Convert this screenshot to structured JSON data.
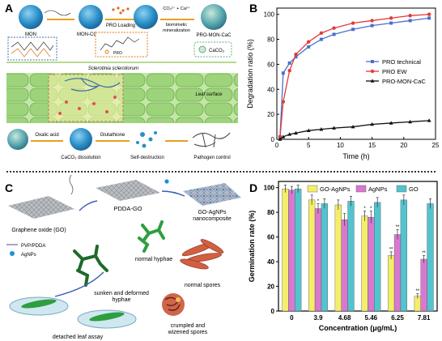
{
  "panels": {
    "a": {
      "label": "A",
      "texts": {
        "mon": "MON",
        "mon_cooh": "MON-COOH",
        "pro_loading": "PRO Loading",
        "co3_ca": "CO₃²⁻ + Ca²⁺",
        "biomimetic": "biomimetic",
        "mineralization": "mineralization",
        "pro_mon_cac": "PRO-MON-CaC",
        "pro": "PRO",
        "caco3": "CaCO₃",
        "sclerotinia": "Sclerotinia sclerotiorum",
        "leaf_surface": "Leaf surface",
        "oxalic_acid": "Oxalic acid",
        "glutathione": "Glutathione",
        "caco3_dissolution": "CaCO₃ dissolution",
        "self_destruction": "Self-destruction",
        "pathogen_control": "Pathogen control"
      }
    },
    "b": {
      "label": "B",
      "chart_data": {
        "type": "line",
        "xlabel": "Time (h)",
        "ylabel": "Degradation ratio (%)",
        "xlim": [
          0,
          25
        ],
        "ylim": [
          0,
          105
        ],
        "xticks": [
          "0",
          "5",
          "10",
          "15",
          "20",
          "25"
        ],
        "yticks": [
          "0",
          "20",
          "40",
          "60",
          "80",
          "100"
        ],
        "legend_position": "middle-right",
        "series": [
          {
            "name": "PRO technical",
            "color": "#4a6fd0",
            "marker": "square",
            "x": [
              0.5,
              1,
              2,
              3,
              5,
              7,
              9,
              12,
              15,
              18,
              21,
              24
            ],
            "y": [
              2,
              53,
              61,
              66,
              74,
              80,
              84,
              88,
              91,
              93,
              95,
              97
            ]
          },
          {
            "name": "PRO EW",
            "color": "#e23a3a",
            "marker": "circle",
            "x": [
              0.5,
              1,
              2,
              3,
              5,
              7,
              9,
              12,
              15,
              18,
              21,
              24
            ],
            "y": [
              2,
              30,
              55,
              68,
              78,
              85,
              89,
              93,
              95,
              97,
              99,
              100
            ]
          },
          {
            "name": "PRO-MON-CaC",
            "color": "#111111",
            "marker": "triangle",
            "x": [
              0.5,
              1,
              2,
              3,
              5,
              7,
              9,
              12,
              15,
              18,
              21,
              24
            ],
            "y": [
              0,
              2,
              4,
              5,
              7,
              8,
              9,
              10,
              12,
              13,
              14,
              15
            ]
          }
        ]
      }
    },
    "c": {
      "label": "C",
      "texts": {
        "graphene_oxide": "Graphene oxide (GO)",
        "pdda_go": "PDDA-GO",
        "go_agnps": "GO-AgNPs",
        "nanocomposite": "nanocomposite",
        "pvp_pdda": "PVP/PDDA",
        "agnps": "AgNPs",
        "normal_hyphae": "normal hyphae",
        "normal_spores": "normal spores",
        "sunken_1": "sunken and deformed",
        "sunken_2": "hyphae",
        "crumpled_1": "crumpled and",
        "crumpled_2": "wizened spores",
        "detached_leaf": "detached leaf assay"
      }
    },
    "d": {
      "label": "D",
      "chart_data": {
        "type": "bar",
        "xlabel": "Concentration (μg/mL)",
        "ylabel": "Germination rate (%)",
        "ylim": [
          0,
          105
        ],
        "yticks": [
          "0",
          "20",
          "40",
          "60",
          "80",
          "100"
        ],
        "categories": [
          "0",
          "3.9",
          "4.68",
          "5.46",
          "6.25",
          "7.81"
        ],
        "legend_position": "top",
        "series": [
          {
            "name": "GO-AgNPs",
            "color": "#f4ee6a",
            "values": [
              99,
              90,
              86,
              77,
              45,
              12
            ],
            "errors": [
              3,
              4,
              4,
              4,
              3,
              2
            ],
            "labels": [
              "",
              "",
              "",
              "*",
              "**",
              "**"
            ]
          },
          {
            "name": "AgNPs",
            "color": "#d879cf",
            "values": [
              98,
              83,
              74,
              76,
              62,
              42
            ],
            "errors": [
              3,
              4,
              5,
              5,
              4,
              3
            ],
            "labels": [
              "",
              "*",
              "",
              "*",
              "**",
              "**"
            ]
          },
          {
            "name": "GO",
            "color": "#52c4cf",
            "values": [
              99,
              87,
              89,
              88,
              90,
              87
            ],
            "errors": [
              3,
              4,
              4,
              4,
              4,
              4
            ],
            "labels": [
              "",
              "",
              "",
              "",
              "",
              ""
            ]
          }
        ]
      }
    }
  }
}
